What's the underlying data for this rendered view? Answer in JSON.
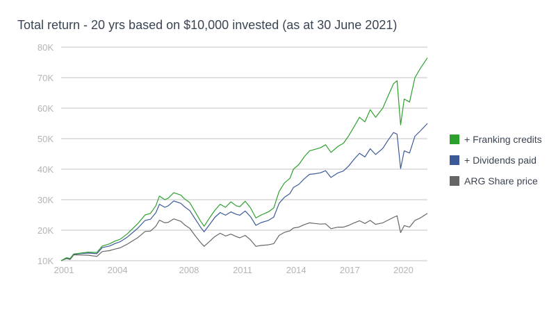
{
  "chart_data": {
    "type": "line",
    "title": "Total return - 20 yrs based on $10,000 invested (as at 30 June 2021)",
    "xlabel": "",
    "ylabel": "",
    "xlim": [
      2001.0,
      2021.5
    ],
    "ylim": [
      10000,
      80000
    ],
    "y_ticks": [
      10000,
      20000,
      30000,
      40000,
      50000,
      60000,
      70000,
      80000
    ],
    "y_tick_labels": [
      "10K",
      "20K",
      "30K",
      "40K",
      "50K",
      "60K",
      "70K",
      "80K"
    ],
    "x_ticks": [
      2001,
      2004,
      2008,
      2011,
      2014,
      2017,
      2020
    ],
    "x_tick_labels": [
      "2001",
      "2004",
      "2008",
      "2011",
      "2014",
      "2017",
      "2020"
    ],
    "grid": "horizontal",
    "legend_position": "right",
    "series": [
      {
        "name": "+ Franking credits",
        "color": "#2ca02c",
        "points": [
          [
            2001.0,
            10000
          ],
          [
            2001.3,
            11000
          ],
          [
            2001.5,
            10700
          ],
          [
            2001.7,
            12200
          ],
          [
            2002.0,
            12400
          ],
          [
            2002.5,
            12800
          ],
          [
            2003.0,
            12700
          ],
          [
            2003.3,
            14800
          ],
          [
            2003.7,
            15500
          ],
          [
            2004.0,
            16400
          ],
          [
            2004.3,
            17000
          ],
          [
            2004.7,
            18800
          ],
          [
            2005.0,
            20500
          ],
          [
            2005.3,
            22200
          ],
          [
            2005.7,
            25000
          ],
          [
            2006.0,
            25500
          ],
          [
            2006.3,
            28000
          ],
          [
            2006.5,
            31200
          ],
          [
            2006.8,
            30000
          ],
          [
            2007.0,
            30500
          ],
          [
            2007.3,
            32300
          ],
          [
            2007.7,
            31500
          ],
          [
            2007.9,
            30300
          ],
          [
            2008.2,
            29000
          ],
          [
            2008.5,
            26000
          ],
          [
            2008.8,
            23000
          ],
          [
            2009.0,
            21300
          ],
          [
            2009.3,
            24000
          ],
          [
            2009.6,
            26500
          ],
          [
            2009.9,
            28500
          ],
          [
            2010.2,
            27500
          ],
          [
            2010.5,
            29300
          ],
          [
            2010.8,
            28000
          ],
          [
            2011.0,
            27700
          ],
          [
            2011.3,
            29500
          ],
          [
            2011.6,
            27300
          ],
          [
            2011.9,
            24000
          ],
          [
            2012.2,
            25000
          ],
          [
            2012.6,
            26000
          ],
          [
            2012.9,
            27300
          ],
          [
            2013.2,
            32700
          ],
          [
            2013.5,
            35500
          ],
          [
            2013.8,
            37000
          ],
          [
            2014.0,
            40000
          ],
          [
            2014.3,
            41500
          ],
          [
            2014.6,
            44000
          ],
          [
            2014.9,
            46000
          ],
          [
            2015.2,
            46500
          ],
          [
            2015.5,
            47000
          ],
          [
            2015.8,
            48000
          ],
          [
            2016.1,
            45500
          ],
          [
            2016.5,
            47500
          ],
          [
            2016.8,
            48500
          ],
          [
            2017.1,
            51000
          ],
          [
            2017.4,
            54000
          ],
          [
            2017.7,
            57000
          ],
          [
            2018.0,
            55500
          ],
          [
            2018.3,
            59500
          ],
          [
            2018.6,
            57000
          ],
          [
            2019.0,
            60000
          ],
          [
            2019.3,
            64000
          ],
          [
            2019.6,
            68000
          ],
          [
            2019.8,
            69000
          ],
          [
            2020.0,
            54500
          ],
          [
            2020.2,
            63000
          ],
          [
            2020.5,
            62000
          ],
          [
            2020.8,
            70000
          ],
          [
            2021.1,
            73000
          ],
          [
            2021.5,
            76500
          ]
        ]
      },
      {
        "name": "+ Dividends paid",
        "color": "#3b5998",
        "points": [
          [
            2001.0,
            10000
          ],
          [
            2001.3,
            10900
          ],
          [
            2001.5,
            10600
          ],
          [
            2001.7,
            12100
          ],
          [
            2002.0,
            12300
          ],
          [
            2002.5,
            12500
          ],
          [
            2003.0,
            12300
          ],
          [
            2003.3,
            14300
          ],
          [
            2003.7,
            14800
          ],
          [
            2004.0,
            15600
          ],
          [
            2004.3,
            16200
          ],
          [
            2004.7,
            17700
          ],
          [
            2005.0,
            19200
          ],
          [
            2005.3,
            20700
          ],
          [
            2005.7,
            23200
          ],
          [
            2006.0,
            23600
          ],
          [
            2006.3,
            25700
          ],
          [
            2006.5,
            28500
          ],
          [
            2006.8,
            27500
          ],
          [
            2007.0,
            28000
          ],
          [
            2007.3,
            29600
          ],
          [
            2007.7,
            28800
          ],
          [
            2007.9,
            27700
          ],
          [
            2008.2,
            26400
          ],
          [
            2008.5,
            23700
          ],
          [
            2008.8,
            21000
          ],
          [
            2009.0,
            19500
          ],
          [
            2009.3,
            21800
          ],
          [
            2009.6,
            24200
          ],
          [
            2009.9,
            25800
          ],
          [
            2010.2,
            24900
          ],
          [
            2010.5,
            26000
          ],
          [
            2010.8,
            25200
          ],
          [
            2011.0,
            24900
          ],
          [
            2011.3,
            26300
          ],
          [
            2011.6,
            24400
          ],
          [
            2011.9,
            21600
          ],
          [
            2012.2,
            22500
          ],
          [
            2012.6,
            23200
          ],
          [
            2012.9,
            24300
          ],
          [
            2013.2,
            28800
          ],
          [
            2013.5,
            30800
          ],
          [
            2013.8,
            32000
          ],
          [
            2014.0,
            34000
          ],
          [
            2014.3,
            35000
          ],
          [
            2014.6,
            36800
          ],
          [
            2014.9,
            38300
          ],
          [
            2015.2,
            38500
          ],
          [
            2015.5,
            38800
          ],
          [
            2015.8,
            39500
          ],
          [
            2016.1,
            37300
          ],
          [
            2016.5,
            38800
          ],
          [
            2016.8,
            39400
          ],
          [
            2017.1,
            41100
          ],
          [
            2017.4,
            43300
          ],
          [
            2017.7,
            45200
          ],
          [
            2018.0,
            44000
          ],
          [
            2018.3,
            46700
          ],
          [
            2018.6,
            44800
          ],
          [
            2019.0,
            46800
          ],
          [
            2019.3,
            49500
          ],
          [
            2019.6,
            52000
          ],
          [
            2019.8,
            51500
          ],
          [
            2020.0,
            40200
          ],
          [
            2020.2,
            46000
          ],
          [
            2020.5,
            45300
          ],
          [
            2020.8,
            50800
          ],
          [
            2021.1,
            52500
          ],
          [
            2021.5,
            55000
          ]
        ]
      },
      {
        "name": "ARG Share price",
        "color": "#666666",
        "points": [
          [
            2001.0,
            10000
          ],
          [
            2001.3,
            10700
          ],
          [
            2001.5,
            10400
          ],
          [
            2001.7,
            11900
          ],
          [
            2002.0,
            11900
          ],
          [
            2002.5,
            11800
          ],
          [
            2003.0,
            11400
          ],
          [
            2003.3,
            13000
          ],
          [
            2003.7,
            13300
          ],
          [
            2004.0,
            13800
          ],
          [
            2004.3,
            14200
          ],
          [
            2004.7,
            15400
          ],
          [
            2005.0,
            16500
          ],
          [
            2005.3,
            17600
          ],
          [
            2005.7,
            19600
          ],
          [
            2006.0,
            19700
          ],
          [
            2006.3,
            21300
          ],
          [
            2006.5,
            23300
          ],
          [
            2006.8,
            22400
          ],
          [
            2007.0,
            22600
          ],
          [
            2007.3,
            23700
          ],
          [
            2007.7,
            22900
          ],
          [
            2007.9,
            21800
          ],
          [
            2008.2,
            20600
          ],
          [
            2008.5,
            18200
          ],
          [
            2008.8,
            16000
          ],
          [
            2009.0,
            14700
          ],
          [
            2009.3,
            16300
          ],
          [
            2009.6,
            17900
          ],
          [
            2009.9,
            19000
          ],
          [
            2010.2,
            18100
          ],
          [
            2010.5,
            18700
          ],
          [
            2010.8,
            17900
          ],
          [
            2011.0,
            17500
          ],
          [
            2011.3,
            18300
          ],
          [
            2011.6,
            16800
          ],
          [
            2011.9,
            14700
          ],
          [
            2012.2,
            15000
          ],
          [
            2012.6,
            15200
          ],
          [
            2012.9,
            15600
          ],
          [
            2013.2,
            18300
          ],
          [
            2013.5,
            19300
          ],
          [
            2013.8,
            19800
          ],
          [
            2014.0,
            20700
          ],
          [
            2014.3,
            21000
          ],
          [
            2014.6,
            21800
          ],
          [
            2014.9,
            22400
          ],
          [
            2015.2,
            22200
          ],
          [
            2015.5,
            22000
          ],
          [
            2015.8,
            22100
          ],
          [
            2016.1,
            20500
          ],
          [
            2016.5,
            21000
          ],
          [
            2016.8,
            21000
          ],
          [
            2017.1,
            21600
          ],
          [
            2017.4,
            22400
          ],
          [
            2017.7,
            23100
          ],
          [
            2018.0,
            22200
          ],
          [
            2018.3,
            23200
          ],
          [
            2018.6,
            21900
          ],
          [
            2019.0,
            22400
          ],
          [
            2019.3,
            23300
          ],
          [
            2019.6,
            24200
          ],
          [
            2019.8,
            24700
          ],
          [
            2020.0,
            19200
          ],
          [
            2020.2,
            21500
          ],
          [
            2020.5,
            21000
          ],
          [
            2020.8,
            23200
          ],
          [
            2021.1,
            24000
          ],
          [
            2021.5,
            25500
          ]
        ]
      }
    ]
  }
}
